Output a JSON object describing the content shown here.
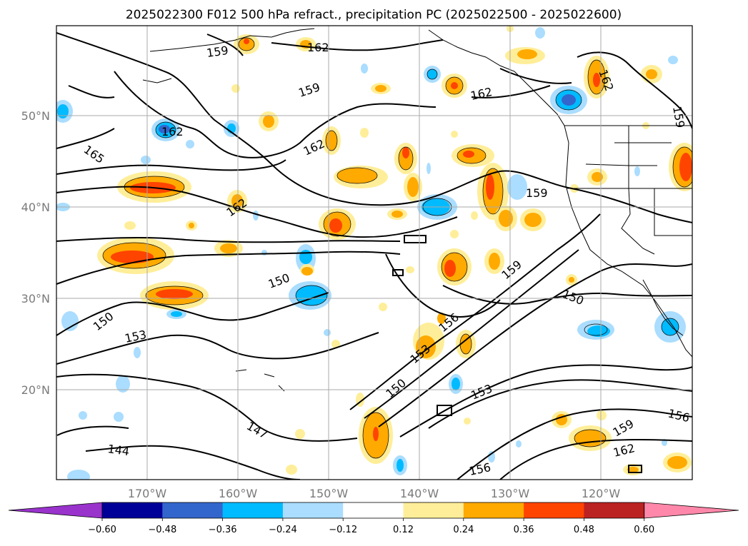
{
  "title": "2025022300 F012 500 hPa refract., precipitation PC (2025022500 - 2025022600)",
  "lon_ticks": [
    "170°W",
    "160°W",
    "150°W",
    "140°W",
    "130°W",
    "120°W"
  ],
  "lat_ticks": [
    "50°N",
    "40°N",
    "30°N",
    "20°N"
  ],
  "colorbar": {
    "colors": [
      "#9933cc",
      "#000099",
      "#3366cc",
      "#00bbff",
      "#aaddff",
      "#ffffff",
      "#ffee99",
      "#ffaa00",
      "#ff4400",
      "#bb2222",
      "#ff88aa"
    ],
    "labels": [
      "-0.60",
      "-0.48",
      "-0.36",
      "-0.24",
      "-0.12",
      "0.12",
      "0.24",
      "0.36",
      "0.48",
      "0.60"
    ],
    "levels": [
      -0.6,
      -0.48,
      -0.36,
      -0.24,
      -0.12,
      0.12,
      0.24,
      0.36,
      0.48,
      0.6
    ]
  },
  "contour_labels": [
    "159",
    "162",
    "159",
    "162",
    "165",
    "162",
    "162",
    "162",
    "159",
    "159",
    "162",
    "150",
    "150",
    "153",
    "159",
    "156",
    "153",
    "150",
    "150",
    "153",
    "147",
    "144",
    "156",
    "156",
    "159",
    "162"
  ]
}
